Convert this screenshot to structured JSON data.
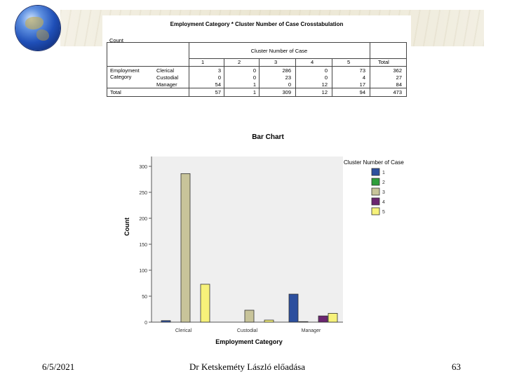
{
  "crosstab": {
    "title": "Employment Category * Cluster Number of Case Crosstabulation",
    "count_label": "Count",
    "cluster_header": "Cluster Number of Case",
    "columns": [
      "1",
      "2",
      "3",
      "4",
      "5",
      "Total"
    ],
    "row_group_label": [
      "Employment",
      "Category"
    ],
    "rows": [
      {
        "label": "Clerical",
        "values": [
          "3",
          "0",
          "286",
          "0",
          "73",
          "362"
        ]
      },
      {
        "label": "Custodial",
        "values": [
          "0",
          "0",
          "23",
          "0",
          "4",
          "27"
        ]
      },
      {
        "label": "Manager",
        "values": [
          "54",
          "1",
          "0",
          "12",
          "17",
          "84"
        ]
      }
    ],
    "total": {
      "label": "Total",
      "values": [
        "57",
        "1",
        "309",
        "12",
        "94",
        "473"
      ]
    }
  },
  "chart_data": {
    "type": "bar",
    "title": "Bar Chart",
    "xlabel": "Employment Category",
    "ylabel": "Count",
    "categories": [
      "Clerical",
      "Custodial",
      "Manager"
    ],
    "ylim": [
      0,
      300
    ],
    "yticks": [
      "0",
      "50",
      "100",
      "150",
      "200",
      "250",
      "300"
    ],
    "legend_title": "Cluster Number of Case",
    "legend_position": "right",
    "series": [
      {
        "name": "1",
        "color": "#2c4f9e",
        "values": [
          3,
          0,
          54
        ]
      },
      {
        "name": "2",
        "color": "#2e9e3a",
        "values": [
          0,
          0,
          1
        ]
      },
      {
        "name": "3",
        "color": "#c8c49a",
        "values": [
          286,
          23,
          0
        ]
      },
      {
        "name": "4",
        "color": "#6b2570",
        "values": [
          0,
          0,
          12
        ]
      },
      {
        "name": "5",
        "color": "#f7f27a",
        "values": [
          73,
          4,
          17
        ]
      }
    ]
  },
  "footer": {
    "date": "6/5/2021",
    "author": "Dr Ketskeméty László előadása",
    "page": "63"
  }
}
